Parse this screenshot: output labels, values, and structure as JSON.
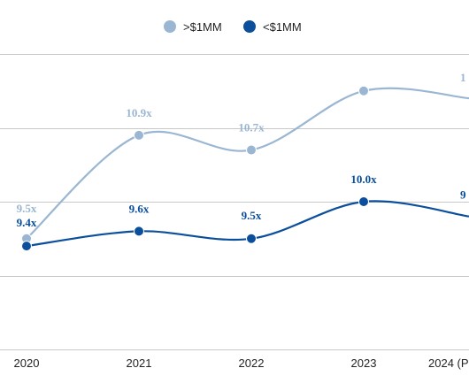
{
  "chart_data": {
    "type": "line",
    "categories": [
      "2020",
      "2021",
      "2022",
      "2023",
      "2024 (P"
    ],
    "ylim": [
      7.5,
      12.5
    ],
    "grid": true,
    "legend_position": "top-center",
    "series": [
      {
        "name": ">$1MM",
        "color": "#9ab6d3",
        "values": [
          9.5,
          10.9,
          10.7,
          11.5,
          11.4
        ],
        "labels": [
          "9.5x",
          "10.9x",
          "10.7x",
          "",
          "1"
        ]
      },
      {
        "name": "<$1MM",
        "color": "#0b4f9c",
        "values": [
          9.4,
          9.6,
          9.5,
          10.0,
          9.8
        ],
        "labels": [
          "9.4x",
          "9.6x",
          "9.5x",
          "10.0x",
          "9"
        ]
      }
    ]
  }
}
